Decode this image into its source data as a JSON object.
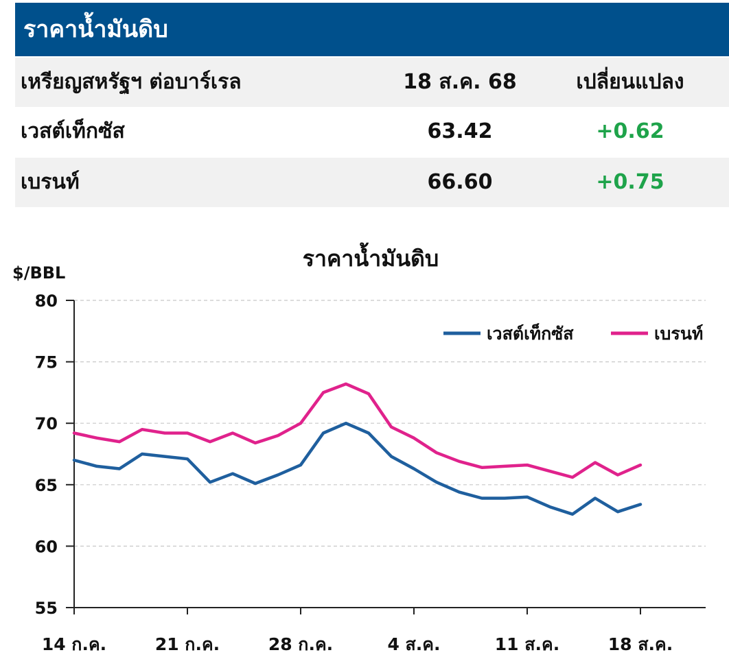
{
  "header": {
    "title": "ราคาน้ำมันดิบ"
  },
  "table": {
    "columns": [
      "เหรียญสหรัฐฯ ต่อบาร์เรล",
      "18 ส.ค. 68",
      "เปลี่ยนแปลง"
    ],
    "rows": [
      {
        "name": "เวสต์เท็กซัส",
        "price": "63.42",
        "change": "+0.62"
      },
      {
        "name": "เบรนท์",
        "price": "66.60",
        "change": "+0.75"
      }
    ]
  },
  "colors": {
    "header_bg": "#00508c",
    "positive": "#1ea34a",
    "wti": "#1f5f9e",
    "brent": "#e0228c"
  },
  "chart_data": {
    "type": "line",
    "title": "ราคาน้ำมันดิบ",
    "ylabel": "$/BBL",
    "ylim": [
      55,
      80
    ],
    "yticks": [
      "80",
      "75",
      "70",
      "65",
      "60",
      "55"
    ],
    "xtick_labels": [
      "14 ก.ค.",
      "21 ก.ค.",
      "28 ก.ค.",
      "4 ส.ค.",
      "11 ส.ค.",
      "18 ส.ค."
    ],
    "legend_position": "top-right",
    "x": [
      "14 ก.ค.",
      "15 ก.ค.",
      "16 ก.ค.",
      "17 ก.ค.",
      "18 ก.ค.",
      "21 ก.ค.",
      "22 ก.ค.",
      "23 ก.ค.",
      "24 ก.ค.",
      "25 ก.ค.",
      "28 ก.ค.",
      "29 ก.ค.",
      "30 ก.ค.",
      "31 ก.ค.",
      "1 ส.ค.",
      "4 ส.ค.",
      "5 ส.ค.",
      "6 ส.ค.",
      "7 ส.ค.",
      "8 ส.ค.",
      "11 ส.ค.",
      "12 ส.ค.",
      "13 ส.ค.",
      "14 ส.ค.",
      "15 ส.ค.",
      "18 ส.ค."
    ],
    "series": [
      {
        "name": "เวสต์เท็กซัส",
        "color": "#1f5f9e",
        "values": [
          67.0,
          66.5,
          66.3,
          67.5,
          67.3,
          67.1,
          65.2,
          65.9,
          65.1,
          65.8,
          66.6,
          69.2,
          70.0,
          69.2,
          67.3,
          66.3,
          65.2,
          64.4,
          63.9,
          63.9,
          64.0,
          63.2,
          62.6,
          63.9,
          62.8,
          63.4
        ]
      },
      {
        "name": "เบรนท์",
        "color": "#e0228c",
        "values": [
          69.2,
          68.8,
          68.5,
          69.5,
          69.2,
          69.2,
          68.5,
          69.2,
          68.4,
          69.0,
          70.0,
          72.5,
          73.2,
          72.4,
          69.7,
          68.8,
          67.6,
          66.9,
          66.4,
          66.5,
          66.6,
          66.1,
          65.6,
          66.8,
          65.8,
          66.6
        ]
      }
    ]
  }
}
